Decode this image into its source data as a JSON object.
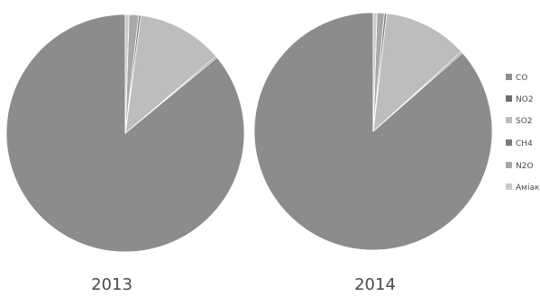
{
  "chart_data": [
    {
      "type": "pie",
      "title": "2013",
      "categories": [
        "CO",
        "NO2",
        "SO2",
        "CH4",
        "N2O",
        "Аміак"
      ],
      "values": [
        86.0,
        0.2,
        11.7,
        0.3,
        1.3,
        0.5
      ]
    },
    {
      "type": "pie",
      "title": "2014",
      "categories": [
        "CO",
        "NO2",
        "SO2",
        "CH4",
        "N2O",
        "Аміак"
      ],
      "values": [
        86.5,
        0.2,
        11.5,
        0.3,
        1.0,
        0.5
      ]
    }
  ],
  "legend": {
    "placement": "right",
    "items": [
      "CO",
      "NO2",
      "SO2",
      "CH4",
      "N2O",
      "Аміак"
    ]
  },
  "colors": [
    "#8c8c8c",
    "#6e6e6e",
    "#bdbdbd",
    "#7a7a7a",
    "#a8a8a8",
    "#c9c9c9"
  ]
}
